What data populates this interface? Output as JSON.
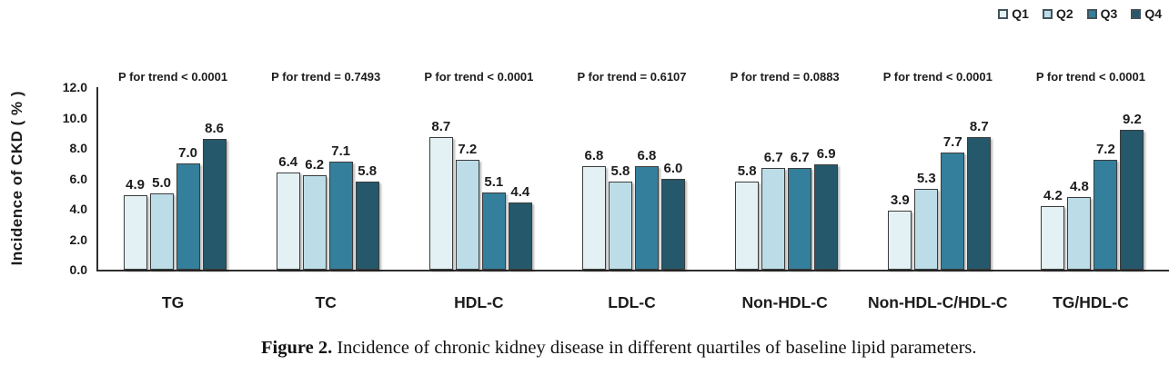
{
  "legend": {
    "items": [
      {
        "label": "Q1",
        "color": "#e3f1f5"
      },
      {
        "label": "Q2",
        "color": "#bcdde7"
      },
      {
        "label": "Q3",
        "color": "#347f9b"
      },
      {
        "label": "Q4",
        "color": "#25586b"
      }
    ]
  },
  "y_axis": {
    "title": "Incidence of CKD ( % )",
    "ticks": [
      "12.0",
      "10.0",
      "8.0",
      "6.0",
      "4.0",
      "2.0",
      "0.0"
    ]
  },
  "chart_data": {
    "type": "bar",
    "title": "",
    "xlabel": "",
    "ylabel": "Incidence of CKD ( % )",
    "ylim": [
      0,
      12
    ],
    "ytick_step": 2,
    "grid": false,
    "legend_position": "top-right",
    "value_labels": true,
    "categories": [
      "TG",
      "TC",
      "HDL-C",
      "LDL-C",
      "Non-HDL-C",
      "Non-HDL-C/HDL-C",
      "TG/HDL-C"
    ],
    "p_for_trend": [
      "P for trend < 0.0001",
      "P for trend = 0.7493",
      "P for trend < 0.0001",
      "P for trend = 0.6107",
      "P for trend = 0.0883",
      "P for trend < 0.0001",
      "P for trend < 0.0001"
    ],
    "series": [
      {
        "name": "Q1",
        "color": "#e3f1f5",
        "values": [
          4.9,
          6.4,
          8.7,
          6.8,
          5.8,
          3.9,
          4.2
        ]
      },
      {
        "name": "Q2",
        "color": "#bcdde7",
        "values": [
          5.0,
          6.2,
          7.2,
          5.8,
          6.7,
          5.3,
          4.8
        ]
      },
      {
        "name": "Q3",
        "color": "#347f9b",
        "values": [
          7.0,
          7.1,
          5.1,
          6.8,
          6.7,
          7.7,
          7.2
        ]
      },
      {
        "name": "Q4",
        "color": "#25586b",
        "values": [
          8.6,
          5.8,
          4.4,
          6.0,
          6.9,
          8.7,
          9.2
        ]
      }
    ]
  },
  "caption": {
    "label": "Figure 2.",
    "text": " Incidence of chronic kidney disease in different quartiles of baseline lipid parameters."
  }
}
